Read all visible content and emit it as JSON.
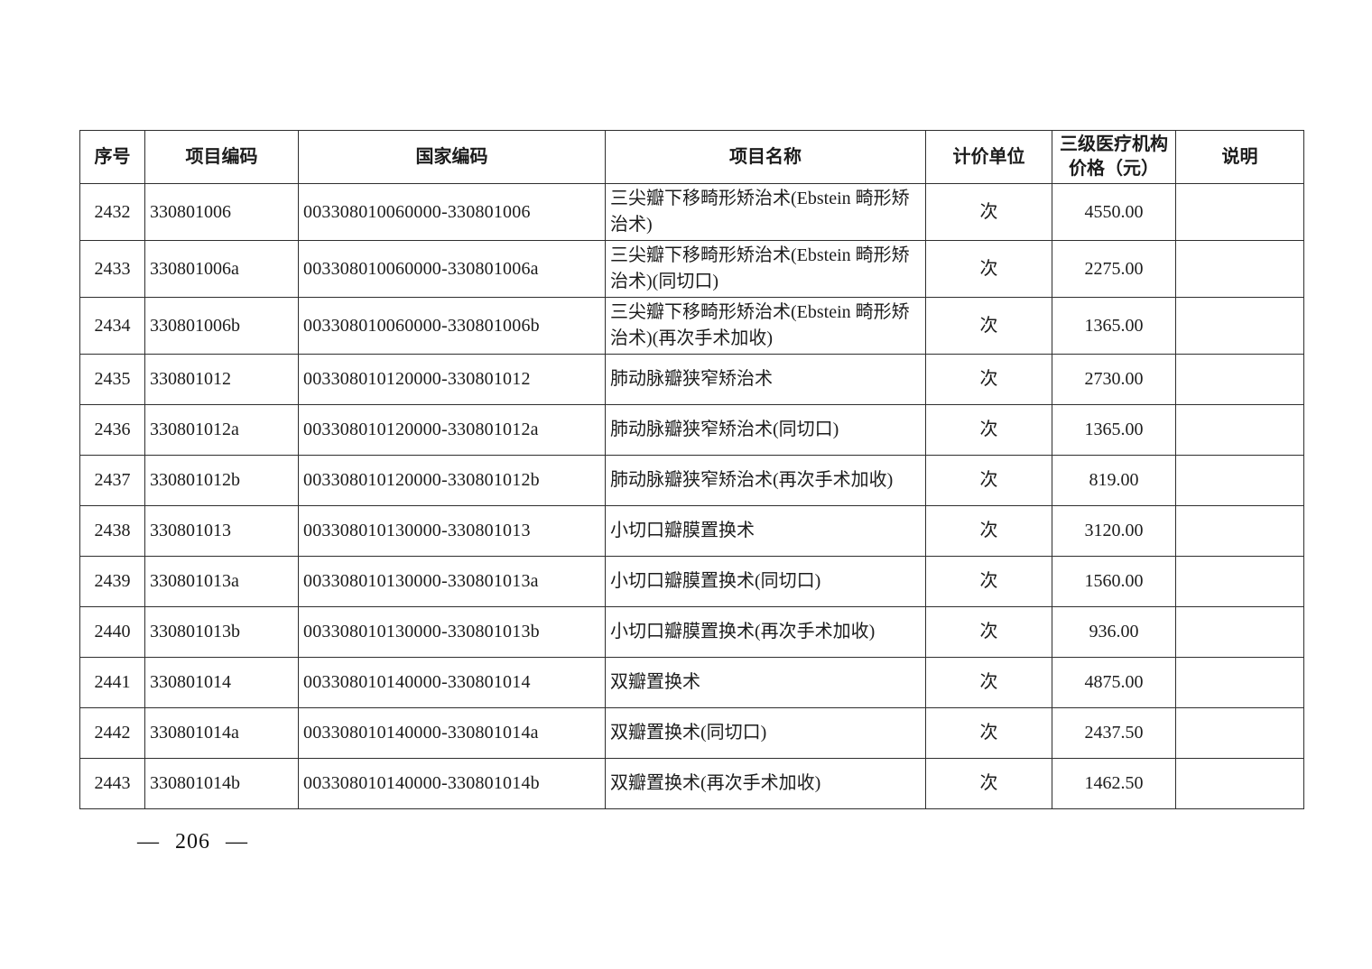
{
  "page": {
    "number_label": "— 206 —"
  },
  "table": {
    "headers": [
      "序号",
      "项目编码",
      "国家编码",
      "项目名称",
      "计价单位",
      "三级医疗机构\n价格（元）",
      "说明"
    ],
    "rows": [
      {
        "seq": "2432",
        "code": "330801006",
        "national_code": "003308010060000-330801006",
        "name": "三尖瓣下移畸形矫治术(Ebstein 畸形矫治术)",
        "unit": "次",
        "price": "4550.00",
        "note": ""
      },
      {
        "seq": "2433",
        "code": "330801006a",
        "national_code": "003308010060000-330801006a",
        "name": "三尖瓣下移畸形矫治术(Ebstein 畸形矫治术)(同切口)",
        "unit": "次",
        "price": "2275.00",
        "note": ""
      },
      {
        "seq": "2434",
        "code": "330801006b",
        "national_code": "003308010060000-330801006b",
        "name": "三尖瓣下移畸形矫治术(Ebstein 畸形矫治术)(再次手术加收)",
        "unit": "次",
        "price": "1365.00",
        "note": ""
      },
      {
        "seq": "2435",
        "code": "330801012",
        "national_code": "003308010120000-330801012",
        "name": "肺动脉瓣狭窄矫治术",
        "unit": "次",
        "price": "2730.00",
        "note": ""
      },
      {
        "seq": "2436",
        "code": "330801012a",
        "national_code": "003308010120000-330801012a",
        "name": "肺动脉瓣狭窄矫治术(同切口)",
        "unit": "次",
        "price": "1365.00",
        "note": ""
      },
      {
        "seq": "2437",
        "code": "330801012b",
        "national_code": "003308010120000-330801012b",
        "name": "肺动脉瓣狭窄矫治术(再次手术加收)",
        "unit": "次",
        "price": "819.00",
        "note": ""
      },
      {
        "seq": "2438",
        "code": "330801013",
        "national_code": "003308010130000-330801013",
        "name": "小切口瓣膜置换术",
        "unit": "次",
        "price": "3120.00",
        "note": ""
      },
      {
        "seq": "2439",
        "code": "330801013a",
        "national_code": "003308010130000-330801013a",
        "name": "小切口瓣膜置换术(同切口)",
        "unit": "次",
        "price": "1560.00",
        "note": ""
      },
      {
        "seq": "2440",
        "code": "330801013b",
        "national_code": "003308010130000-330801013b",
        "name": "小切口瓣膜置换术(再次手术加收)",
        "unit": "次",
        "price": "936.00",
        "note": ""
      },
      {
        "seq": "2441",
        "code": "330801014",
        "national_code": "003308010140000-330801014",
        "name": "双瓣置换术",
        "unit": "次",
        "price": "4875.00",
        "note": ""
      },
      {
        "seq": "2442",
        "code": "330801014a",
        "national_code": "003308010140000-330801014a",
        "name": "双瓣置换术(同切口)",
        "unit": "次",
        "price": "2437.50",
        "note": ""
      },
      {
        "seq": "2443",
        "code": "330801014b",
        "national_code": "003308010140000-330801014b",
        "name": "双瓣置换术(再次手术加收)",
        "unit": "次",
        "price": "1462.50",
        "note": ""
      }
    ]
  }
}
